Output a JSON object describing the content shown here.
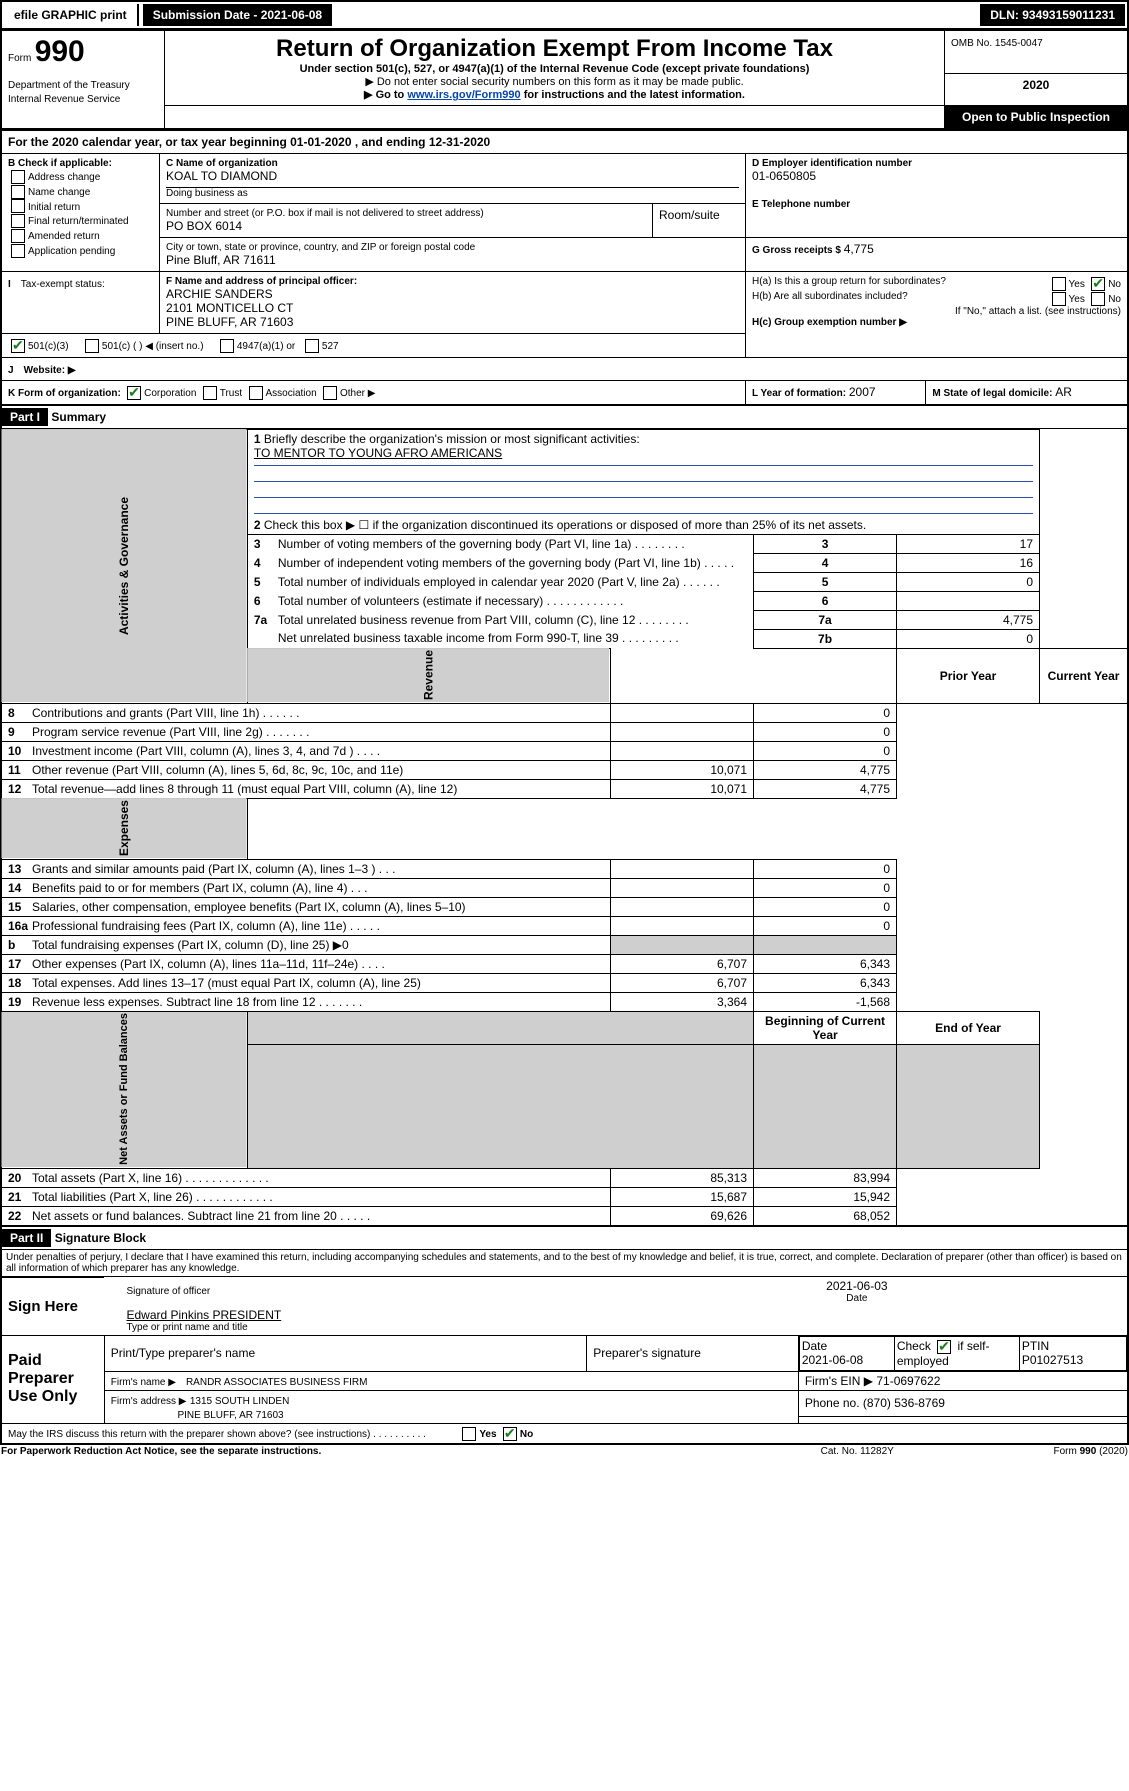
{
  "colors": {
    "black": "#000000",
    "white": "#ffffff",
    "shade": "#cfcfcf",
    "link": "#0645ad",
    "blue_line": "#2b4ea0",
    "check_green": "#1a7f1a"
  },
  "top_bar": {
    "efile": "efile GRAPHIC print",
    "submission": "Submission Date - 2021-06-08",
    "dln": "DLN: 93493159011231"
  },
  "header": {
    "form_label": "Form",
    "form_number": "990",
    "title": "Return of Organization Exempt From Income Tax",
    "subtitle": "Under section 501(c), 527, or 4947(a)(1) of the Internal Revenue Code (except private foundations)",
    "note1": "▶ Do not enter social security numbers on this form as it may be made public.",
    "note2_pre": "▶ Go to ",
    "note2_link": "www.irs.gov/Form990",
    "note2_post": " for instructions and the latest information.",
    "omb": "OMB No. 1545-0047",
    "year": "2020",
    "open": "Open to Public Inspection",
    "dept": "Department of the Treasury\nInternal Revenue Service"
  },
  "sectionA": {
    "calendar_line": "For the 2020 calendar year, or tax year beginning 01-01-2020    , and ending 12-31-2020",
    "boxB_title": "B Check if applicable:",
    "boxB_items": [
      "Address change",
      "Name change",
      "Initial return",
      "Final return/terminated",
      "Amended return",
      "Application pending"
    ],
    "boxC_label": "C Name of organization",
    "org_name": "KOAL TO DIAMOND",
    "dba_label": "Doing business as",
    "addr_label": "Number and street (or P.O. box if mail is not delivered to street address)",
    "room_label": "Room/suite",
    "addr": "PO BOX 6014",
    "city_label": "City or town, state or province, country, and ZIP or foreign postal code",
    "city": "Pine Bluff, AR  71611",
    "boxD_label": "D Employer identification number",
    "ein": "01-0650805",
    "boxE_label": "E Telephone number",
    "boxG_label": "G Gross receipts $ ",
    "gross": "4,775",
    "boxF_label": "F  Name and address of principal officer:",
    "officer1": "ARCHIE SANDERS",
    "officer2": "2101 MONTICELLO CT",
    "officer3": "PINE BLUFF, AR  71603",
    "Ha_label": "H(a)  Is this a group return for subordinates?",
    "Hb_label": "H(b)  Are all subordinates included?",
    "Hb_note": "If \"No,\" attach a list. (see instructions)",
    "Hc_label": "H(c)  Group exemption number ▶",
    "yes": "Yes",
    "no": "No",
    "tax_exempt": "Tax-exempt status:",
    "te_501c3": "501(c)(3)",
    "te_501c": "501(c) (  ) ◀ (insert no.)",
    "te_4947": "4947(a)(1) or",
    "te_527": "527",
    "website_label": "Website: ▶",
    "boxK_label": "K Form of organization:",
    "k_corp": "Corporation",
    "k_trust": "Trust",
    "k_assoc": "Association",
    "k_other": "Other ▶",
    "boxL_label": "L Year of formation: ",
    "yearL": "2007",
    "boxM_label": "M State of legal domicile: ",
    "stateM": "AR",
    "I_label": "I",
    "J_label": "J"
  },
  "part1": {
    "header": "Part I",
    "title": "Summary",
    "line1_label": "Briefly describe the organization's mission or most significant activities:",
    "mission": "TO MENTOR TO YOUNG AFRO AMERICANS",
    "line2": "Check this box ▶ ☐  if the organization discontinued its operations or disposed of more than 25% of its net assets.",
    "lines": [
      {
        "n": "1",
        "label": "Briefly describe the organization's mission or most significant activities:"
      },
      {
        "n": "2",
        "label": "Check this box ▶ ☐  if the organization discontinued its operations or disposed of more than 25% of its net assets."
      },
      {
        "n": "3",
        "label": "Number of voting members of the governing body (Part VI, line 1a)  .  .  .  .  .  .  .  .",
        "col": "3",
        "val": "17"
      },
      {
        "n": "4",
        "label": "Number of independent voting members of the governing body (Part VI, line 1b)  .  .  .  .  .",
        "col": "4",
        "val": "16"
      },
      {
        "n": "5",
        "label": "Total number of individuals employed in calendar year 2020 (Part V, line 2a)  .  .  .  .  .  .",
        "col": "5",
        "val": "0"
      },
      {
        "n": "6",
        "label": "Total number of volunteers (estimate if necessary)  .  .  .  .  .  .  .  .  .  .  .  .",
        "col": "6",
        "val": ""
      },
      {
        "n": "7a",
        "label": "Total unrelated business revenue from Part VIII, column (C), line 12  .  .  .  .  .  .  .  .",
        "col": "7a",
        "val": "4,775"
      },
      {
        "n": "",
        "label": "Net unrelated business taxable income from Form 990-T, line 39  .  .  .  .  .  .  .  .  .",
        "col": "7b",
        "val": "0"
      }
    ],
    "vert_labels": {
      "gov": "Activities & Governance",
      "rev": "Revenue",
      "exp": "Expenses",
      "nab": "Net Assets or Fund Balances"
    },
    "col_prior": "Prior Year",
    "col_current": "Current Year",
    "col_begin": "Beginning of Current Year",
    "col_end": "End of Year",
    "rows_rev": [
      {
        "n": "8",
        "label": "Contributions and grants (Part VIII, line 1h)  .  .  .  .  .  .",
        "p": "",
        "c": "0"
      },
      {
        "n": "9",
        "label": "Program service revenue (Part VIII, line 2g)  .  .  .  .  .  .  .",
        "p": "",
        "c": "0"
      },
      {
        "n": "10",
        "label": "Investment income (Part VIII, column (A), lines 3, 4, and 7d )  .  .  .  .",
        "p": "",
        "c": "0"
      },
      {
        "n": "11",
        "label": "Other revenue (Part VIII, column (A), lines 5, 6d, 8c, 9c, 10c, and 11e)",
        "p": "10,071",
        "c": "4,775"
      },
      {
        "n": "12",
        "label": "Total revenue—add lines 8 through 11 (must equal Part VIII, column (A), line 12)",
        "p": "10,071",
        "c": "4,775"
      }
    ],
    "rows_exp": [
      {
        "n": "13",
        "label": "Grants and similar amounts paid (Part IX, column (A), lines 1–3 )  .  .  .",
        "p": "",
        "c": "0"
      },
      {
        "n": "14",
        "label": "Benefits paid to or for members (Part IX, column (A), line 4)  .  .  .",
        "p": "",
        "c": "0"
      },
      {
        "n": "15",
        "label": "Salaries, other compensation, employee benefits (Part IX, column (A), lines 5–10)",
        "p": "",
        "c": "0"
      },
      {
        "n": "16a",
        "label": "Professional fundraising fees (Part IX, column (A), line 11e)  .  .  .  .  .",
        "p": "",
        "c": "0"
      },
      {
        "n": "b",
        "label": "Total fundraising expenses (Part IX, column (D), line 25) ▶0",
        "p": null,
        "c": null
      },
      {
        "n": "17",
        "label": "Other expenses (Part IX, column (A), lines 11a–11d, 11f–24e)  .  .  .  .",
        "p": "6,707",
        "c": "6,343"
      },
      {
        "n": "18",
        "label": "Total expenses. Add lines 13–17 (must equal Part IX, column (A), line 25)",
        "p": "6,707",
        "c": "6,343"
      },
      {
        "n": "19",
        "label": "Revenue less expenses. Subtract line 18 from line 12  .  .  .  .  .  .  .",
        "p": "3,364",
        "c": "-1,568"
      }
    ],
    "rows_nab": [
      {
        "n": "20",
        "label": "Total assets (Part X, line 16)  .  .  .  .  .  .  .  .  .  .  .  .  .",
        "p": "85,313",
        "c": "83,994"
      },
      {
        "n": "21",
        "label": "Total liabilities (Part X, line 26)  .  .  .  .  .  .  .  .  .  .  .  .",
        "p": "15,687",
        "c": "15,942"
      },
      {
        "n": "22",
        "label": "Net assets or fund balances. Subtract line 21 from line 20  .  .  .  .  .",
        "p": "69,626",
        "c": "68,052"
      }
    ],
    "letter_b": "b"
  },
  "part2": {
    "header": "Part II",
    "title": "Signature Block",
    "declaration": "Under penalties of perjury, I declare that I have examined this return, including accompanying schedules and statements, and to the best of my knowledge and belief, it is true, correct, and complete. Declaration of preparer (other than officer) is based on all information of which preparer has any knowledge.",
    "sign_here": "Sign Here",
    "sig_officer": "Signature of officer",
    "sig_date": "2021-06-03",
    "date_label": "Date",
    "typed_name": "Edward Pinkins PRESIDENT",
    "typed_label": "Type or print name and title",
    "paid_preparer": "Paid Preparer Use Only",
    "pp_name_label": "Print/Type preparer's name",
    "pp_sig_label": "Preparer's signature",
    "pp_date_label": "Date",
    "pp_date": "2021-06-08",
    "pp_check_label": "Check ☑ if self-employed",
    "pp_ptin_label": "PTIN",
    "pp_ptin": "P01027513",
    "firm_name_label": "Firm's name     ▶",
    "firm_name": "RANDR ASSOCIATES BUSINESS FIRM",
    "firm_ein_label": "Firm's EIN ▶",
    "firm_ein": "71-0697622",
    "firm_addr_label": "Firm's address ▶",
    "firm_addr1": "1315 SOUTH LINDEN",
    "firm_addr2": "PINE BLUFF, AR  71603",
    "phone_label": "Phone no. ",
    "phone": "(870) 536-8769",
    "discuss": "May the IRS discuss this return with the preparer shown above? (see instructions)  .  .  .  .  .  .  .  .  .  .",
    "footer_left": "For Paperwork Reduction Act Notice, see the separate instructions.",
    "footer_mid": "Cat. No. 11282Y",
    "footer_right": "Form 990 (2020)"
  }
}
